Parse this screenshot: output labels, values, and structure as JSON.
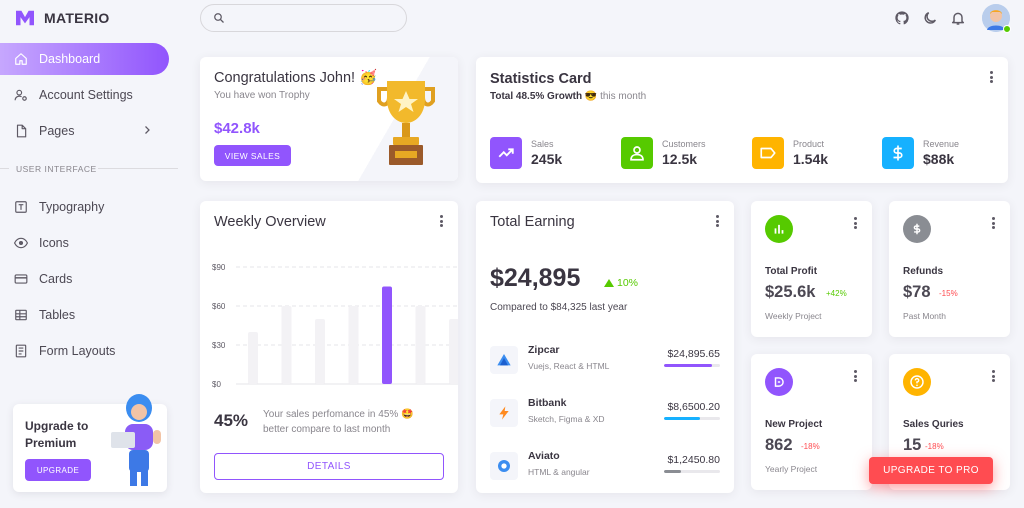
{
  "brand": {
    "name": "MATERIO"
  },
  "sidebar": {
    "items": [
      {
        "label": "Dashboard",
        "icon": "home-icon",
        "active": true
      },
      {
        "label": "Account Settings",
        "icon": "account-cog-icon"
      },
      {
        "label": "Pages",
        "icon": "file-icon",
        "has_submenu": true
      }
    ],
    "section_label": "USER INTERFACE",
    "ui_items": [
      {
        "label": "Typography",
        "icon": "typography-icon"
      },
      {
        "label": "Icons",
        "icon": "eye-icon"
      },
      {
        "label": "Cards",
        "icon": "credit-card-icon"
      },
      {
        "label": "Tables",
        "icon": "table-icon"
      },
      {
        "label": "Form Layouts",
        "icon": "form-icon"
      }
    ],
    "upgrade_card": {
      "title": "Upgrade to Premium",
      "button": "UPGRADE"
    }
  },
  "topbar": {
    "search_placeholder": ""
  },
  "congrats": {
    "title": "Congratulations John! 🥳",
    "subtitle": "You have won Trophy",
    "amount": "$42.8k",
    "button": "VIEW SALES"
  },
  "statistics": {
    "title": "Statistics Card",
    "subtitle_bold": "Total 48.5% Growth",
    "subtitle_rest": "😎 this month",
    "items": [
      {
        "label": "Sales",
        "value": "245k",
        "color": "#9155fd",
        "icon": "trending-up-icon"
      },
      {
        "label": "Customers",
        "value": "12.5k",
        "color": "#56ca00",
        "icon": "account-icon"
      },
      {
        "label": "Product",
        "value": "1.54k",
        "color": "#ffb400",
        "icon": "label-icon"
      },
      {
        "label": "Revenue",
        "value": "$88k",
        "color": "#16b1ff",
        "icon": "dollar-icon"
      }
    ]
  },
  "weekly": {
    "title": "Weekly Overview",
    "percent": "45%",
    "description": "Your sales perfomance in 45% 🤩 better compare to last month",
    "button": "DETAILS",
    "chart_data": {
      "type": "bar",
      "y_ticks": [
        "$90",
        "$60",
        "$30",
        "$0"
      ],
      "ylim": [
        0,
        90
      ],
      "values": [
        40,
        60,
        50,
        60,
        75,
        60,
        50
      ],
      "highlight_index": 4,
      "grid": true
    }
  },
  "earning": {
    "title": "Total Earning",
    "total": "$24,895",
    "growth": "10%",
    "compare": "Compared to $84,325 last year",
    "rows": [
      {
        "name": "Zipcar",
        "desc": "Vuejs, React & HTML",
        "amount": "$24,895.65",
        "progress": 0.85,
        "color": "#9155fd",
        "icon": "zipcar-logo-icon"
      },
      {
        "name": "Bitbank",
        "desc": "Sketch, Figma & XD",
        "amount": "$8,6500.20",
        "progress": 0.65,
        "color": "#16b1ff",
        "icon": "bitbank-logo-icon"
      },
      {
        "name": "Aviato",
        "desc": "HTML & angular",
        "amount": "$1,2450.80",
        "progress": 0.3,
        "color": "#8a8d93",
        "icon": "aviato-logo-icon"
      }
    ]
  },
  "mini_cards": [
    {
      "label": "Total Profit",
      "value": "$25.6k",
      "change": "+42%",
      "positive": true,
      "footer": "Weekly Project",
      "color": "#56ca00",
      "icon": "poll-icon"
    },
    {
      "label": "Refunds",
      "value": "$78",
      "change": "-15%",
      "positive": false,
      "footer": "Past Month",
      "color": "#8a8d93",
      "icon": "currency-icon"
    },
    {
      "label": "New Project",
      "value": "862",
      "change": "-18%",
      "positive": false,
      "footer": "Yearly Project",
      "color": "#9155fd",
      "icon": "briefcase-icon"
    },
    {
      "label": "Sales Quries",
      "value": "15",
      "change": "-18%",
      "positive": false,
      "footer": "",
      "color": "#ffb400",
      "icon": "help-circle-icon"
    }
  ],
  "upgrade_pro": {
    "label": "UPGRADE TO PRO"
  }
}
